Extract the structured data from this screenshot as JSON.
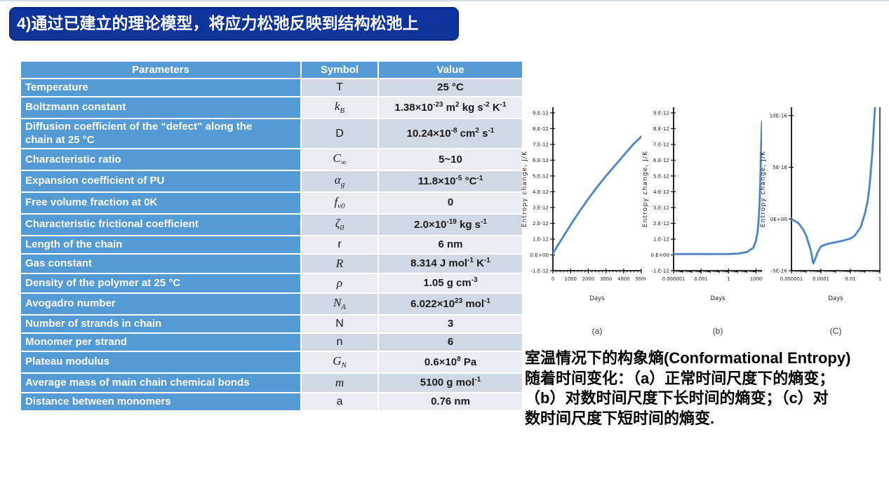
{
  "slide": {
    "title": "4)通过已建立的理论模型，将应力松弛反映到结构松弛上",
    "caption_lines": [
      "室温情况下的构象熵(Conformational Entropy)",
      "随着时间变化：（a）正常时间尺度下的熵变；",
      "（b）对数时间尺度下长时间的熵变；（c）对",
      "数时间尺度下短时间的熵变."
    ]
  },
  "colors": {
    "title_bg": "#0d339c",
    "title_border": "#0a2a84",
    "table_blue": "#549ad5",
    "row_band_dark": "#d0d8e4",
    "row_band_light": "#e9edf3",
    "chart_line": "#4a7ebb",
    "chart_line_halo": "#a8c9e8"
  },
  "table": {
    "headers": [
      "Parameters",
      "Symbol",
      "Value"
    ],
    "rows": [
      {
        "parameter": "Temperature",
        "symbol": {
          "base": "T",
          "sub": "",
          "italic": false
        },
        "value": "25 °C"
      },
      {
        "parameter": "Boltzmann constant",
        "symbol": {
          "base": "k",
          "sub": "B",
          "italic": true
        },
        "value": "1.38×10^-23 m^2 kg s^-2 K^-1"
      },
      {
        "parameter": "Diffusion coefficient of the “defect” along the chain at 25 °C",
        "symbol": {
          "base": "D",
          "sub": "",
          "italic": false
        },
        "value": "10.24×10^-8 cm^2 s^-1"
      },
      {
        "parameter": "Characteristic ratio",
        "symbol": {
          "base": "C",
          "sub": "∞",
          "italic": true
        },
        "value": "5~10"
      },
      {
        "parameter": "Expansion coefficient of PU",
        "symbol": {
          "base": "α",
          "sub": "g",
          "italic": true
        },
        "value": "11.8×10^-5 °C^-1"
      },
      {
        "parameter": "Free volume fraction at 0K",
        "symbol": {
          "base": "f",
          "sub": "v0",
          "italic": true
        },
        "value": "0"
      },
      {
        "parameter": "Characteristic frictional coefficient",
        "symbol": {
          "base": "ζ",
          "sub": "0",
          "italic": true
        },
        "value": "2.0×10^-19 kg s^-1"
      },
      {
        "parameter": "Length of the chain",
        "symbol": {
          "base": "r",
          "sub": "",
          "italic": false
        },
        "value": "6 nm"
      },
      {
        "parameter": "Gas constant",
        "symbol": {
          "base": "R",
          "sub": "",
          "italic": true
        },
        "value": "8.314 J mol^-1 K^-1"
      },
      {
        "parameter": "Density of the polymer at 25 °C",
        "symbol": {
          "base": "ρ",
          "sub": "",
          "italic": true
        },
        "value": "1.05 g cm^-3"
      },
      {
        "parameter": "Avogadro number",
        "symbol": {
          "base": "N",
          "sub": "A",
          "italic": true
        },
        "value": "6.022×10^23 mol^-1"
      },
      {
        "parameter": "Number of strands in chain",
        "symbol": {
          "base": "N",
          "sub": "",
          "italic": false
        },
        "value": "3"
      },
      {
        "parameter": "Monomer per strand",
        "symbol": {
          "base": "n",
          "sub": "",
          "italic": false
        },
        "value": "6"
      },
      {
        "parameter": "Plateau modulus",
        "symbol": {
          "base": "G",
          "sub": "N",
          "italic": true
        },
        "value": "0.6×10^8 Pa"
      },
      {
        "parameter": "Average mass of main chain chemical bonds",
        "symbol": {
          "base": "m",
          "sub": "",
          "italic": true
        },
        "value": "5100 g mol^-1"
      },
      {
        "parameter": "Distance between monomers",
        "symbol": {
          "base": "a",
          "sub": "",
          "italic": false
        },
        "value": "0.76 nm"
      }
    ]
  },
  "chart_data": [
    {
      "type": "line",
      "label": "(a)",
      "xlabel": "Days",
      "ylabel": "Entropy change, J/K",
      "x_scale": "linear",
      "xlim": [
        0,
        5000
      ],
      "x_ticks": {
        "values": [
          0,
          1000,
          2000,
          3000,
          4000,
          5000
        ],
        "labels": [
          "0",
          "1000",
          "2000",
          "3000",
          "4000",
          "5000"
        ],
        "minor_step": 200
      },
      "ylim": [
        -1e-12,
        9.35e-12
      ],
      "y_ticks": {
        "values": [
          9e-12,
          8e-12,
          7e-12,
          6e-12,
          5e-12,
          4e-12,
          3e-12,
          2e-12,
          1e-12,
          0,
          -1e-12
        ],
        "labels": [
          "9.E-12",
          "8.E-12",
          "7.E-12",
          "6.E-12",
          "5.E-12",
          "4.E-12",
          "3.E-12",
          "2.E-12",
          "1.E-12",
          "0.E+00",
          "-1.E-12"
        ]
      },
      "grid": false,
      "right_border": false,
      "series": [
        {
          "name": "entropy-change-normal-scale",
          "x": [
            0,
            500,
            1000,
            1500,
            2000,
            2500,
            3000,
            3500,
            4000,
            4500,
            5000
          ],
          "y": [
            1e-13,
            1e-12,
            1.9e-12,
            2.75e-12,
            3.55e-12,
            4.3e-12,
            5e-12,
            5.65e-12,
            6.3e-12,
            6.95e-12,
            7.5e-12
          ]
        }
      ]
    },
    {
      "type": "line",
      "label": "(b)",
      "xlabel": "Days",
      "ylabel": "Entropy change, J/K",
      "x_scale": "log",
      "xlim": [
        1e-06,
        4500
      ],
      "x_ticks": {
        "values": [
          1e-06,
          0.001,
          1,
          1000
        ],
        "labels": [
          "0.000001",
          "0.001",
          "1",
          "1000"
        ]
      },
      "ylim": [
        -1e-12,
        9.35e-12
      ],
      "y_ticks": {
        "values": [
          9e-12,
          8e-12,
          7e-12,
          6e-12,
          5e-12,
          4e-12,
          3e-12,
          2e-12,
          1e-12,
          0,
          -1e-12
        ],
        "labels": [
          "9.E-12",
          "8.E-12",
          "7.E-12",
          "6.E-12",
          "5.E-12",
          "4.E-12",
          "3.E-12",
          "2.E-12",
          "1.E-12",
          "0.E+00",
          "-1.E-12"
        ]
      },
      "grid": false,
      "right_border": false,
      "series": [
        {
          "name": "entropy-change-log-long-time",
          "x": [
            1e-06,
            1e-05,
            0.0001,
            0.001,
            0.01,
            0.1,
            1,
            10,
            100,
            500,
            1000,
            1500,
            2000,
            2500,
            3000,
            3500,
            4000,
            4500
          ],
          "y": [
            5e-14,
            5e-14,
            5e-14,
            5e-14,
            5.2e-14,
            5.5e-14,
            6e-14,
            8e-14,
            1.8e-13,
            4.5e-13,
            9e-13,
            1.5e-12,
            2.3e-12,
            3.4e-12,
            4.9e-12,
            6.5e-12,
            7.8e-12,
            8.45e-12
          ]
        }
      ]
    },
    {
      "type": "line",
      "label": "(C)",
      "xlabel": "Days",
      "ylabel": "Entropy change, J/K",
      "x_scale": "log",
      "xlim": [
        1e-06,
        1
      ],
      "x_ticks": {
        "values": [
          1e-06,
          0.0001,
          0.01,
          1
        ],
        "labels": [
          "0.000001",
          "0.0001",
          "0.01",
          "1"
        ]
      },
      "ylim": [
        -5e-16,
        1.08e-15
      ],
      "y_ticks": {
        "values": [
          1e-15,
          5e-16,
          0,
          -5e-16
        ],
        "labels": [
          "10E-16",
          "5E-16",
          "0E+00",
          "-5E-16"
        ]
      },
      "grid": false,
      "right_border": true,
      "series": [
        {
          "name": "entropy-change-log-short-time",
          "x": [
            1e-06,
            3e-06,
            6e-06,
            1e-05,
            2e-05,
            3e-05,
            4e-05,
            6e-05,
            0.0001,
            0.00015,
            0.0003,
            0.001,
            0.003,
            0.01,
            0.02,
            0.05,
            0.1,
            0.15,
            0.2,
            0.3,
            0.4,
            0.5
          ],
          "y": [
            0,
            -4e-17,
            -1e-16,
            -1.6e-16,
            -3e-16,
            -4.3e-16,
            -3.9e-16,
            -3.2e-16,
            -2.65e-16,
            -2.55e-16,
            -2.4e-16,
            -2.25e-16,
            -2.1e-16,
            -1.9e-16,
            -1.6e-16,
            -8e-17,
            6e-17,
            1.8e-16,
            3.2e-16,
            6.2e-16,
            9.2e-16,
            1.15e-15
          ]
        }
      ]
    }
  ]
}
